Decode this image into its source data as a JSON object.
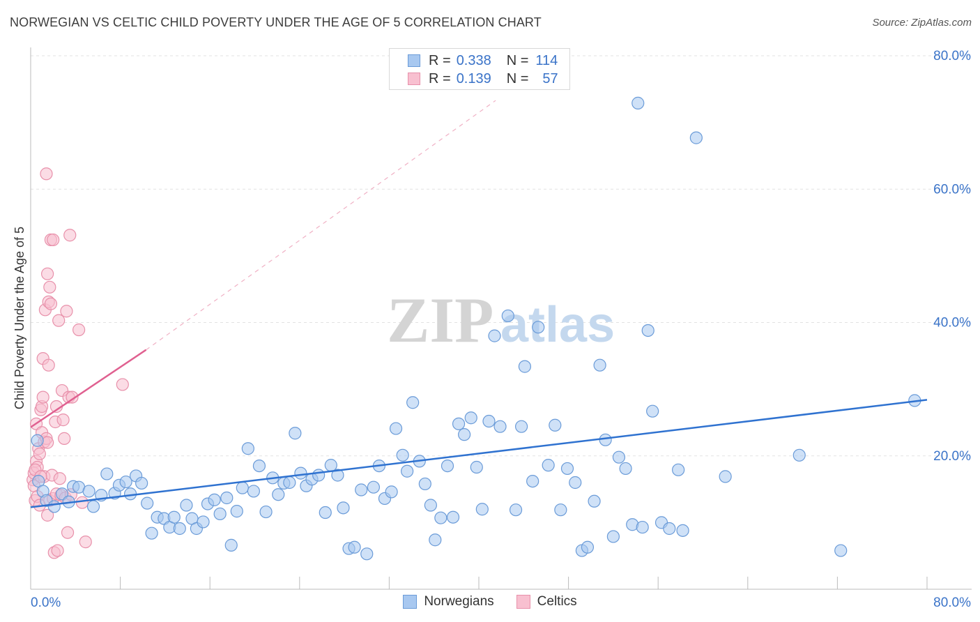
{
  "title": "NORWEGIAN VS CELTIC CHILD POVERTY UNDER THE AGE OF 5 CORRELATION CHART",
  "source": "Source: ZipAtlas.com",
  "watermark": {
    "zip": "ZIP",
    "atlas": "atlas"
  },
  "legend": {
    "rows": [
      {
        "r_label": "R =",
        "r_value": "0.338",
        "n_label": "N =",
        "n_value": "114",
        "color": "#a8c8f0",
        "border": "#6a9bd8"
      },
      {
        "r_label": "R =",
        "r_value": "0.139",
        "n_label": "N =",
        "n_value": "57",
        "color": "#f8c0d0",
        "border": "#e890aa"
      }
    ]
  },
  "bottom_legend": [
    {
      "label": "Norwegians",
      "color": "#a8c8f0",
      "border": "#6a9bd8"
    },
    {
      "label": "Celtics",
      "color": "#f8c0d0",
      "border": "#e890aa"
    }
  ],
  "chart_data": {
    "type": "scatter",
    "title": "NORWEGIAN VS CELTIC CHILD POVERTY UNDER THE AGE OF 5 CORRELATION CHART",
    "xlabel": "",
    "ylabel": "Child Poverty Under the Age of 5",
    "xlim": [
      0,
      80
    ],
    "ylim": [
      0,
      80
    ],
    "x_tick_labels": [
      "0.0%",
      "80.0%"
    ],
    "y_ticks": [
      20,
      40,
      60,
      80
    ],
    "y_tick_labels": [
      "20.0%",
      "40.0%",
      "60.0%",
      "80.0%"
    ],
    "grid": true,
    "legend_position": "top-center",
    "series": [
      {
        "name": "Norwegians",
        "color": "#a8c8f0",
        "edge": "#6a9bd8",
        "trend": {
          "x": [
            0,
            80
          ],
          "y": [
            12.3,
            28.4
          ],
          "color": "#2f72d0"
        },
        "points": [
          [
            0.6,
            22.3
          ],
          [
            0.7,
            16.2
          ],
          [
            1.1,
            14.7
          ],
          [
            1.4,
            13.3
          ],
          [
            2.1,
            12.4
          ],
          [
            2.8,
            14.3
          ],
          [
            3.4,
            13.1
          ],
          [
            3.8,
            15.4
          ],
          [
            4.3,
            15.3
          ],
          [
            5.2,
            14.7
          ],
          [
            5.6,
            12.4
          ],
          [
            6.3,
            14.1
          ],
          [
            6.8,
            17.3
          ],
          [
            7.5,
            14.4
          ],
          [
            7.9,
            15.6
          ],
          [
            8.5,
            16.1
          ],
          [
            8.9,
            14.3
          ],
          [
            9.4,
            17.0
          ],
          [
            9.9,
            15.9
          ],
          [
            10.4,
            12.9
          ],
          [
            10.8,
            8.4
          ],
          [
            11.3,
            10.8
          ],
          [
            11.9,
            10.6
          ],
          [
            12.4,
            9.3
          ],
          [
            12.8,
            10.8
          ],
          [
            13.3,
            9.1
          ],
          [
            13.9,
            12.6
          ],
          [
            14.4,
            10.6
          ],
          [
            14.8,
            9.1
          ],
          [
            15.4,
            10.1
          ],
          [
            15.8,
            12.8
          ],
          [
            16.4,
            13.4
          ],
          [
            16.9,
            11.3
          ],
          [
            17.5,
            13.7
          ],
          [
            17.9,
            6.6
          ],
          [
            18.4,
            11.7
          ],
          [
            18.9,
            15.2
          ],
          [
            19.4,
            21.1
          ],
          [
            19.9,
            14.7
          ],
          [
            20.4,
            18.5
          ],
          [
            21.0,
            11.6
          ],
          [
            21.6,
            16.7
          ],
          [
            22.1,
            14.2
          ],
          [
            22.6,
            15.9
          ],
          [
            23.1,
            16.0
          ],
          [
            23.6,
            23.4
          ],
          [
            24.1,
            17.4
          ],
          [
            24.6,
            15.5
          ],
          [
            25.1,
            16.5
          ],
          [
            25.7,
            17.1
          ],
          [
            26.3,
            11.5
          ],
          [
            26.8,
            18.6
          ],
          [
            27.4,
            17.1
          ],
          [
            27.9,
            12.2
          ],
          [
            28.4,
            6.1
          ],
          [
            28.9,
            6.3
          ],
          [
            29.5,
            14.9
          ],
          [
            30.0,
            5.3
          ],
          [
            30.6,
            15.3
          ],
          [
            31.1,
            18.5
          ],
          [
            31.6,
            13.6
          ],
          [
            32.2,
            14.6
          ],
          [
            32.6,
            24.1
          ],
          [
            33.2,
            20.1
          ],
          [
            33.6,
            17.7
          ],
          [
            34.1,
            28.0
          ],
          [
            34.7,
            19.2
          ],
          [
            35.2,
            15.8
          ],
          [
            35.7,
            12.6
          ],
          [
            36.1,
            7.4
          ],
          [
            36.6,
            10.7
          ],
          [
            37.2,
            18.5
          ],
          [
            37.7,
            10.8
          ],
          [
            38.2,
            24.8
          ],
          [
            38.7,
            23.2
          ],
          [
            39.3,
            25.7
          ],
          [
            39.8,
            18.3
          ],
          [
            40.3,
            12.0
          ],
          [
            40.9,
            25.2
          ],
          [
            41.4,
            38.0
          ],
          [
            41.9,
            24.4
          ],
          [
            42.6,
            41.0
          ],
          [
            43.3,
            11.9
          ],
          [
            43.8,
            24.4
          ],
          [
            44.1,
            33.4
          ],
          [
            44.8,
            16.2
          ],
          [
            45.3,
            39.3
          ],
          [
            46.2,
            18.6
          ],
          [
            46.8,
            24.6
          ],
          [
            47.3,
            11.9
          ],
          [
            47.9,
            18.1
          ],
          [
            48.6,
            16.0
          ],
          [
            49.2,
            5.8
          ],
          [
            49.7,
            6.3
          ],
          [
            50.3,
            13.2
          ],
          [
            50.8,
            33.6
          ],
          [
            51.3,
            22.4
          ],
          [
            52.0,
            7.9
          ],
          [
            52.5,
            19.8
          ],
          [
            53.1,
            18.1
          ],
          [
            53.7,
            9.7
          ],
          [
            54.2,
            72.9
          ],
          [
            54.6,
            9.3
          ],
          [
            55.1,
            38.8
          ],
          [
            55.5,
            26.7
          ],
          [
            56.3,
            10.0
          ],
          [
            57.0,
            9.1
          ],
          [
            57.8,
            17.9
          ],
          [
            58.2,
            8.8
          ],
          [
            59.4,
            67.7
          ],
          [
            62.0,
            16.9
          ],
          [
            68.6,
            20.1
          ],
          [
            72.3,
            5.8
          ],
          [
            78.9,
            28.3
          ]
        ]
      },
      {
        "name": "Celtics",
        "color": "#f8c0d0",
        "edge": "#e890aa",
        "trend": {
          "x": [
            0,
            10.3
          ],
          "y": [
            24.3,
            35.9
          ],
          "color": "#e06090"
        },
        "trend_extension": {
          "x": [
            10.3,
            41.5
          ],
          "y": [
            35.9,
            73.3
          ]
        },
        "points": [
          [
            0.2,
            16.4
          ],
          [
            0.3,
            15.5
          ],
          [
            0.3,
            17.4
          ],
          [
            0.4,
            13.3
          ],
          [
            0.5,
            19.2
          ],
          [
            0.5,
            24.8
          ],
          [
            0.6,
            18.3
          ],
          [
            0.6,
            13.9
          ],
          [
            0.7,
            21.1
          ],
          [
            0.8,
            20.3
          ],
          [
            0.8,
            12.6
          ],
          [
            0.9,
            26.9
          ],
          [
            1.0,
            23.5
          ],
          [
            1.0,
            27.4
          ],
          [
            1.1,
            34.6
          ],
          [
            1.1,
            28.8
          ],
          [
            1.2,
            22.1
          ],
          [
            1.2,
            16.9
          ],
          [
            1.3,
            41.9
          ],
          [
            1.4,
            62.3
          ],
          [
            1.4,
            22.6
          ],
          [
            1.5,
            47.3
          ],
          [
            1.5,
            22.0
          ],
          [
            1.5,
            11.1
          ],
          [
            1.6,
            33.6
          ],
          [
            1.6,
            43.1
          ],
          [
            1.7,
            45.3
          ],
          [
            1.7,
            13.3
          ],
          [
            1.8,
            52.4
          ],
          [
            1.8,
            42.8
          ],
          [
            1.9,
            17.1
          ],
          [
            2.0,
            52.4
          ],
          [
            2.0,
            13.6
          ],
          [
            2.1,
            5.5
          ],
          [
            2.2,
            25.1
          ],
          [
            2.3,
            27.4
          ],
          [
            2.3,
            14.3
          ],
          [
            2.4,
            5.8
          ],
          [
            2.5,
            40.3
          ],
          [
            2.6,
            16.6
          ],
          [
            2.7,
            14.1
          ],
          [
            2.8,
            29.8
          ],
          [
            2.9,
            25.4
          ],
          [
            3.0,
            22.6
          ],
          [
            3.1,
            13.7
          ],
          [
            3.2,
            41.7
          ],
          [
            3.3,
            8.5
          ],
          [
            3.4,
            28.8
          ],
          [
            3.5,
            53.1
          ],
          [
            3.6,
            14.2
          ],
          [
            3.7,
            28.8
          ],
          [
            4.3,
            38.9
          ],
          [
            4.6,
            13.0
          ],
          [
            4.9,
            7.1
          ],
          [
            8.2,
            30.7
          ],
          [
            0.4,
            17.9
          ],
          [
            0.9,
            16.9
          ]
        ]
      }
    ]
  }
}
